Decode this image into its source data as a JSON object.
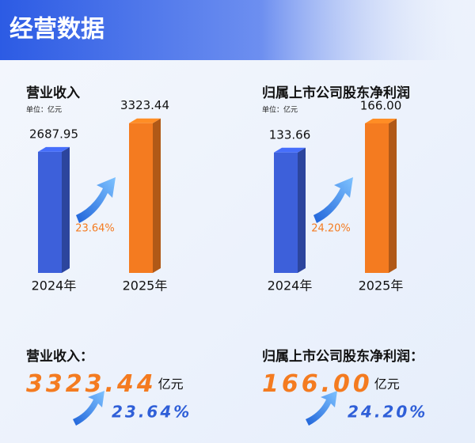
{
  "title": "经营数据",
  "chart_data": [
    {
      "type": "bar",
      "title": "营业收入",
      "unit": "单位：亿元",
      "categories": [
        "2024年",
        "2025年"
      ],
      "values": [
        2687.95,
        3323.44
      ],
      "value_labels": [
        "2687.95",
        "3323.44"
      ],
      "colors": [
        "#3d60da",
        "#f47b20"
      ],
      "annotation": "23.64%",
      "ylim": [
        0,
        3600
      ]
    },
    {
      "type": "bar",
      "title": "归属上市公司股东净利润",
      "unit": "单位：亿元",
      "categories": [
        "2024年",
        "2025年"
      ],
      "values": [
        133.66,
        166.0
      ],
      "value_labels": [
        "133.66",
        "166.00"
      ],
      "colors": [
        "#3d60da",
        "#f47b20"
      ],
      "annotation": "24.20%",
      "ylim": [
        0,
        180
      ]
    }
  ],
  "summary": [
    {
      "label": "营业收入：",
      "unit": "亿元"
    },
    {
      "label": "归属上市公司股东净利润：",
      "unit": "亿元"
    }
  ]
}
